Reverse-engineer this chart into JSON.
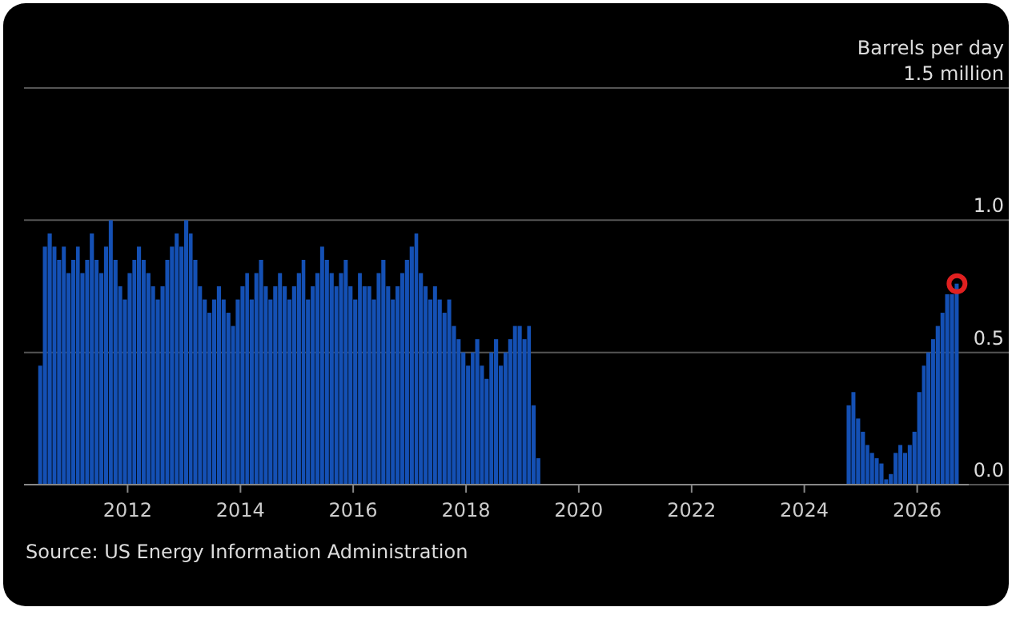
{
  "chart_data": {
    "type": "bar",
    "ylabel": "Barrels per day",
    "annotations": [
      "Source: US Energy Information Administration"
    ],
    "x": [
      "2010-06",
      "2010-07",
      "2010-08",
      "2010-09",
      "2010-10",
      "2010-11",
      "2010-12",
      "2011-01",
      "2011-02",
      "2011-03",
      "2011-04",
      "2011-05",
      "2011-06",
      "2011-07",
      "2011-08",
      "2011-09",
      "2011-10",
      "2011-11",
      "2011-12",
      "2012-01",
      "2012-02",
      "2012-03",
      "2012-04",
      "2012-05",
      "2012-06",
      "2012-07",
      "2012-08",
      "2012-09",
      "2012-10",
      "2012-11",
      "2012-12",
      "2013-01",
      "2013-02",
      "2013-03",
      "2013-04",
      "2013-05",
      "2013-06",
      "2013-07",
      "2013-08",
      "2013-09",
      "2013-10",
      "2013-11",
      "2013-12",
      "2014-01",
      "2014-02",
      "2014-03",
      "2014-04",
      "2014-05",
      "2014-06",
      "2014-07",
      "2014-08",
      "2014-09",
      "2014-10",
      "2014-11",
      "2014-12",
      "2015-01",
      "2015-02",
      "2015-03",
      "2015-04",
      "2015-05",
      "2015-06",
      "2015-07",
      "2015-08",
      "2015-09",
      "2015-10",
      "2015-11",
      "2015-12",
      "2016-01",
      "2016-02",
      "2016-03",
      "2016-04",
      "2016-05",
      "2016-06",
      "2016-07",
      "2016-08",
      "2016-09",
      "2016-10",
      "2016-11",
      "2016-12",
      "2017-01",
      "2017-02",
      "2017-03",
      "2017-04",
      "2017-05",
      "2017-06",
      "2017-07",
      "2017-08",
      "2017-09",
      "2017-10",
      "2017-11",
      "2017-12",
      "2018-01",
      "2018-02",
      "2018-03",
      "2018-04",
      "2018-05",
      "2018-06",
      "2018-07",
      "2018-08",
      "2018-09",
      "2018-10",
      "2018-11",
      "2018-12",
      "2019-01",
      "2019-02",
      "2019-03",
      "2019-04",
      "2024-10",
      "2024-11",
      "2024-12",
      "2025-01",
      "2025-02",
      "2025-03",
      "2025-04",
      "2025-05",
      "2025-06",
      "2025-07",
      "2025-08",
      "2025-09",
      "2025-10",
      "2025-11",
      "2025-12",
      "2026-01",
      "2026-02",
      "2026-03",
      "2026-04",
      "2026-05",
      "2026-06",
      "2026-07",
      "2026-08",
      "2026-09"
    ],
    "values": [
      0.45,
      0.9,
      0.95,
      0.9,
      0.85,
      0.9,
      0.8,
      0.85,
      0.9,
      0.8,
      0.85,
      0.95,
      0.85,
      0.8,
      0.9,
      1.0,
      0.85,
      0.75,
      0.7,
      0.8,
      0.85,
      0.9,
      0.85,
      0.8,
      0.75,
      0.7,
      0.75,
      0.85,
      0.9,
      0.95,
      0.9,
      1.0,
      0.95,
      0.85,
      0.75,
      0.7,
      0.65,
      0.7,
      0.75,
      0.7,
      0.65,
      0.6,
      0.7,
      0.75,
      0.8,
      0.7,
      0.8,
      0.85,
      0.75,
      0.7,
      0.75,
      0.8,
      0.75,
      0.7,
      0.75,
      0.8,
      0.85,
      0.7,
      0.75,
      0.8,
      0.9,
      0.85,
      0.8,
      0.75,
      0.8,
      0.85,
      0.75,
      0.7,
      0.8,
      0.75,
      0.75,
      0.7,
      0.8,
      0.85,
      0.75,
      0.7,
      0.75,
      0.8,
      0.85,
      0.9,
      0.95,
      0.8,
      0.75,
      0.7,
      0.75,
      0.7,
      0.65,
      0.7,
      0.6,
      0.55,
      0.5,
      0.45,
      0.5,
      0.55,
      0.45,
      0.4,
      0.5,
      0.55,
      0.45,
      0.5,
      0.55,
      0.6,
      0.6,
      0.55,
      0.6,
      0.3,
      0.1,
      0.3,
      0.35,
      0.25,
      0.2,
      0.15,
      0.12,
      0.1,
      0.08,
      0.02,
      0.04,
      0.12,
      0.15,
      0.12,
      0.15,
      0.2,
      0.35,
      0.45,
      0.5,
      0.55,
      0.6,
      0.65,
      0.72,
      0.72,
      0.76
    ],
    "color": "#1450b4",
    "xlim": [
      "2010-03",
      "2026-12"
    ],
    "xticks": [
      "2012",
      "2014",
      "2016",
      "2018",
      "2020",
      "2022",
      "2024",
      "2026"
    ],
    "ylim": [
      0,
      1.5
    ],
    "yticks": [
      {
        "value": 0,
        "label": "0.0"
      },
      0.5,
      {
        "value": 1,
        "label": "1.0"
      },
      {
        "value": 1.5,
        "label": "1.5 million"
      }
    ],
    "grid": "y"
  }
}
